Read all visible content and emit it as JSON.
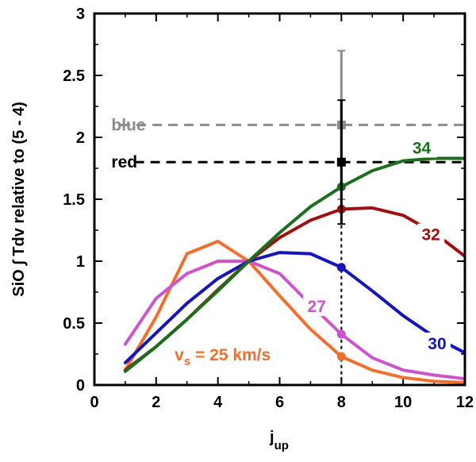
{
  "chart_data": {
    "type": "line",
    "xlabel": "j",
    "xlabel_sub": "up",
    "ylabel": "SiO ∫ Tdv relative to (5 - 4)",
    "xlim": [
      0,
      12
    ],
    "ylim": [
      0,
      3
    ],
    "xticks": [
      0,
      2,
      4,
      6,
      8,
      10,
      12
    ],
    "yticks": [
      0,
      0.5,
      1,
      1.5,
      2,
      2.5,
      3
    ],
    "ytick_labels": [
      "0",
      "0.5",
      "1",
      "1.5",
      "2",
      "2.5",
      "3"
    ],
    "grid": false,
    "series": [
      {
        "name": "v",
        "label_sub": "s",
        "label_rest": " = 25 km/s",
        "color": "#f07030",
        "x": [
          1,
          2,
          3,
          4,
          5,
          6,
          7,
          8,
          9,
          10,
          11,
          12
        ],
        "y": [
          0.12,
          0.55,
          1.06,
          1.16,
          1.0,
          0.72,
          0.45,
          0.23,
          0.12,
          0.06,
          0.03,
          0.02
        ]
      },
      {
        "name": "27",
        "color": "#cc55cc",
        "x": [
          1,
          2,
          3,
          4,
          5,
          6,
          7,
          8,
          9,
          10,
          11,
          12
        ],
        "y": [
          0.33,
          0.7,
          0.9,
          1.0,
          1.0,
          0.9,
          0.65,
          0.41,
          0.22,
          0.12,
          0.08,
          0.05
        ]
      },
      {
        "name": "30",
        "color": "#1515b8",
        "x": [
          1,
          2,
          3,
          4,
          5,
          6,
          7,
          8,
          9,
          10,
          11,
          12
        ],
        "y": [
          0.18,
          0.42,
          0.66,
          0.86,
          1.0,
          1.07,
          1.06,
          0.95,
          0.76,
          0.56,
          0.39,
          0.26
        ]
      },
      {
        "name": "32",
        "color": "#a01010",
        "x": [
          1,
          2,
          3,
          4,
          5,
          6,
          7,
          8,
          9,
          10,
          11,
          12
        ],
        "y": [
          0.12,
          0.31,
          0.53,
          0.77,
          1.0,
          1.19,
          1.33,
          1.42,
          1.43,
          1.37,
          1.23,
          1.04
        ]
      },
      {
        "name": "34",
        "color": "#1c6e1c",
        "x": [
          1,
          2,
          3,
          4,
          5,
          6,
          7,
          8,
          9,
          10,
          11,
          12
        ],
        "y": [
          0.11,
          0.31,
          0.53,
          0.76,
          1.0,
          1.23,
          1.44,
          1.6,
          1.73,
          1.81,
          1.83,
          1.83
        ]
      }
    ],
    "observations": [
      {
        "name": "blue",
        "color": "#8c8c8c",
        "x": 8,
        "y": 2.1,
        "yerr_low": 1.5,
        "yerr_high": 2.7
      },
      {
        "name": "red",
        "color": "#000000",
        "x": 8,
        "y": 1.8,
        "yerr_low": 1.3,
        "yerr_high": 2.3
      }
    ],
    "highlight_x": 8,
    "model_markers_x": 8
  }
}
